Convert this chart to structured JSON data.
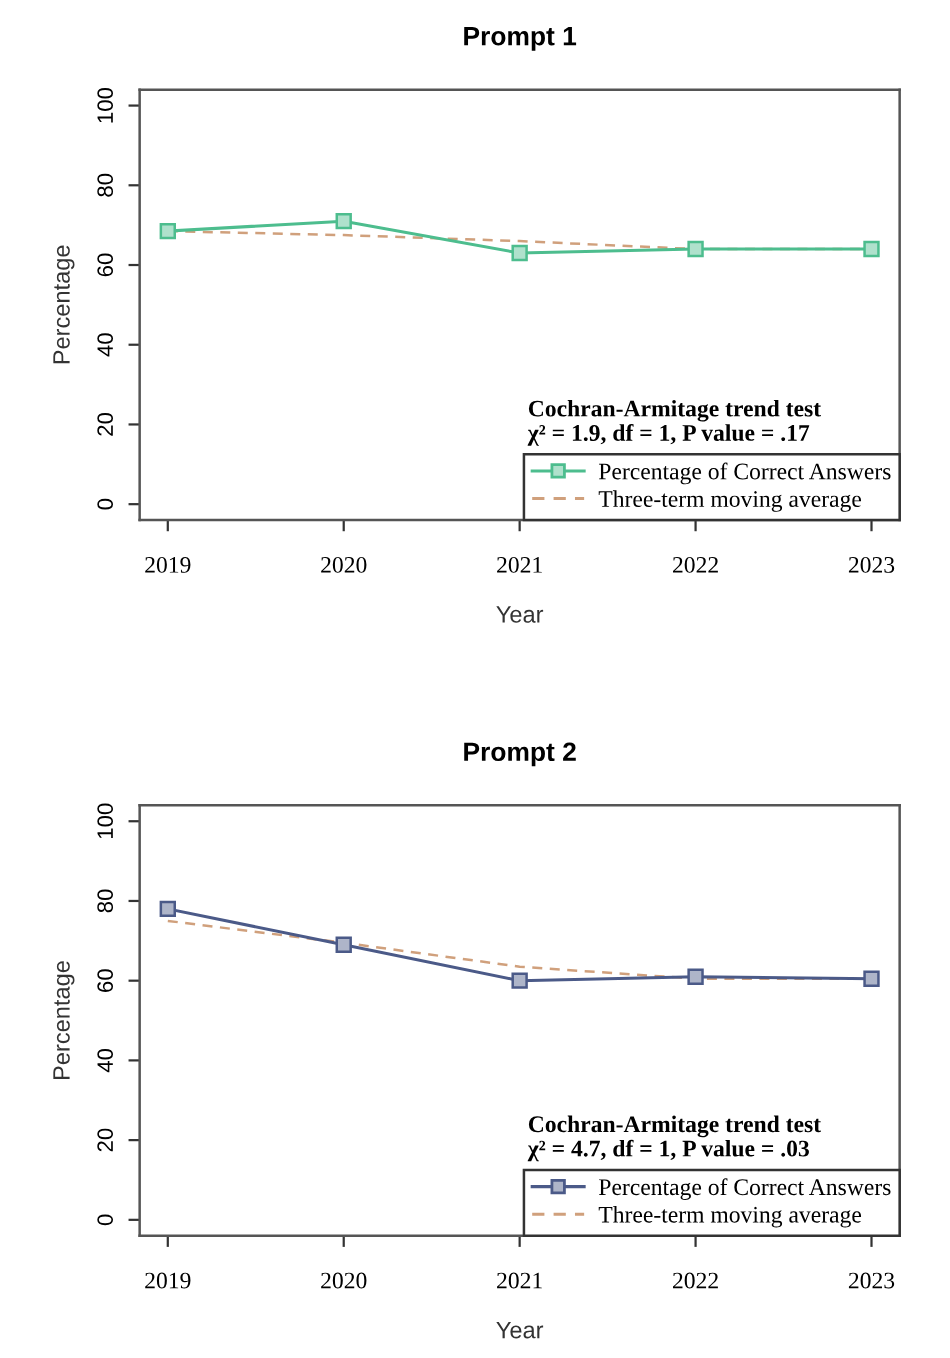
{
  "chart_data": [
    {
      "type": "line",
      "title": "Prompt 1",
      "xlabel": "Year",
      "ylabel": "Percentage",
      "x": [
        2019,
        2020,
        2021,
        2022,
        2023
      ],
      "xlim": [
        2018.84,
        2023.16
      ],
      "xticks": [
        2019,
        2020,
        2021,
        2022,
        2023
      ],
      "ylim": [
        -4,
        104
      ],
      "yticks": [
        0,
        20,
        40,
        60,
        80,
        100
      ],
      "grid": false,
      "legend": "bottom right",
      "series": [
        {
          "name": "Percentage of Correct Answers",
          "color": "#4dbd8e",
          "marker": "square",
          "line_style": "solid",
          "values": [
            68.5,
            71,
            63,
            64,
            64
          ]
        },
        {
          "name": "Three-term moving average",
          "color": "#d0a07c",
          "marker": "none",
          "line_style": "dashed",
          "values": [
            68.5,
            67.5,
            66,
            64,
            64
          ]
        }
      ],
      "annotations": [
        "Cochran-Armitage trend test",
        "χ² = 1.9, df = 1, P value = .17"
      ]
    },
    {
      "type": "line",
      "title": "Prompt 2",
      "xlabel": "Year",
      "ylabel": "Percentage",
      "x": [
        2019,
        2020,
        2021,
        2022,
        2023
      ],
      "xlim": [
        2018.84,
        2023.16
      ],
      "xticks": [
        2019,
        2020,
        2021,
        2022,
        2023
      ],
      "ylim": [
        -4,
        104
      ],
      "yticks": [
        0,
        20,
        40,
        60,
        80,
        100
      ],
      "grid": false,
      "legend": "bottom right",
      "series": [
        {
          "name": "Percentage of Correct Answers",
          "color": "#4b5a88",
          "marker": "square",
          "line_style": "solid",
          "values": [
            78,
            69,
            60,
            61,
            60.5
          ]
        },
        {
          "name": "Three-term moving average",
          "color": "#d0a07c",
          "marker": "none",
          "line_style": "dashed",
          "values": [
            75,
            69.5,
            63.5,
            60.5,
            60.5
          ]
        }
      ],
      "annotations": [
        "Cochran-Armitage trend test",
        "χ² = 4.7, df = 1, P value = .03"
      ]
    }
  ]
}
